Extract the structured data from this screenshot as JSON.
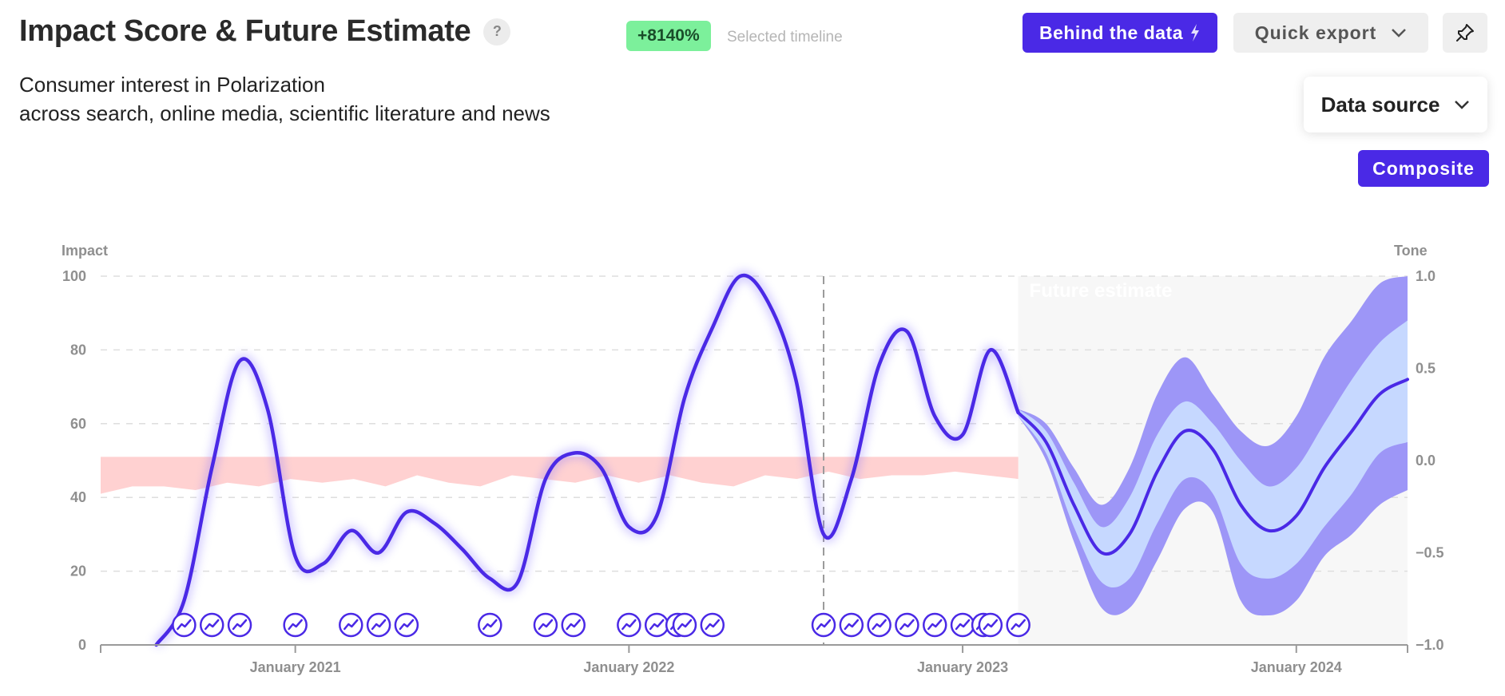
{
  "header": {
    "title": "Impact Score & Future Estimate",
    "help_label": "?",
    "growth_badge": "+8140%",
    "growth_caption": "Selected timeline",
    "subtitle_line1": "Consumer interest in Polarization",
    "subtitle_line2": "across search, online media, scientific literature and news"
  },
  "toolbar": {
    "behind_label": "Behind the data",
    "export_label": "Quick export",
    "data_source_label": "Data source",
    "composite_label": "Composite"
  },
  "colors": {
    "accent": "#4a29e6",
    "badge": "#7cf09b",
    "tone_band": "#ffcfcf",
    "forecast_outer": "#9d96f7",
    "forecast_inner": "#c6d8ff",
    "future_bg": "#f7f7f7"
  },
  "icons": {
    "behind": "lightning-icon",
    "export": "chevron-down-icon",
    "pin": "pin-icon",
    "data_source": "chevron-down-icon",
    "event": "trend-icon"
  },
  "chart_data": {
    "type": "line",
    "title": "Impact Score & Future Estimate",
    "ylabel": "Impact",
    "y2label": "Tone",
    "ylim": [
      0,
      100
    ],
    "y2lim": [
      -1.0,
      1.0
    ],
    "y_ticks": [
      "0",
      "20",
      "40",
      "60",
      "80",
      "100"
    ],
    "y2_ticks": [
      "1.0",
      "0.5",
      "0.0",
      "−0.5",
      "−1.0"
    ],
    "x_ticks": [
      "January 2021",
      "January 2022",
      "January 2023",
      "January 2024"
    ],
    "x_range": [
      "2020-06",
      "2024-05"
    ],
    "grid": "horizontal-dashed",
    "marker_date": "2022-08",
    "future_label": "Future estimate",
    "future_start": "2023-03",
    "series": [
      {
        "name": "Impact",
        "x": [
          "2020-08",
          "2020-09",
          "2020-10",
          "2020-11",
          "2020-12",
          "2021-01",
          "2021-02",
          "2021-03",
          "2021-04",
          "2021-05",
          "2021-06",
          "2021-07",
          "2021-08",
          "2021-09",
          "2021-10",
          "2021-11",
          "2021-12",
          "2022-01",
          "2022-02",
          "2022-03",
          "2022-04",
          "2022-05",
          "2022-06",
          "2022-07",
          "2022-08",
          "2022-09",
          "2022-10",
          "2022-11",
          "2022-12",
          "2023-01",
          "2023-02",
          "2023-03"
        ],
        "values": [
          0,
          12,
          48,
          77,
          64,
          24,
          22,
          31,
          25,
          36,
          33,
          26,
          18,
          17,
          45,
          52,
          48,
          32,
          35,
          67,
          86,
          100,
          93,
          72,
          30,
          45,
          76,
          85,
          62,
          57,
          80,
          63
        ]
      }
    ],
    "forecast": {
      "x": [
        "2023-03",
        "2023-04",
        "2023-05",
        "2023-06",
        "2023-07",
        "2023-08",
        "2023-09",
        "2023-10",
        "2023-11",
        "2023-12",
        "2024-01",
        "2024-02",
        "2024-03",
        "2024-04",
        "2024-05"
      ],
      "mid": [
        63,
        55,
        38,
        25,
        30,
        47,
        58,
        53,
        38,
        31,
        35,
        48,
        58,
        68,
        72
      ],
      "inner_lower": [
        62,
        52,
        32,
        17,
        18,
        33,
        45,
        41,
        22,
        18,
        22,
        32,
        41,
        52,
        55
      ],
      "inner_upper": [
        64,
        58,
        44,
        32,
        40,
        57,
        66,
        60,
        50,
        43,
        48,
        60,
        72,
        82,
        88
      ],
      "outer_lower": [
        62,
        50,
        28,
        10,
        10,
        23,
        37,
        36,
        12,
        8,
        12,
        24,
        30,
        38,
        42
      ],
      "outer_upper": [
        64,
        60,
        48,
        38,
        48,
        68,
        78,
        68,
        58,
        54,
        62,
        78,
        88,
        98,
        100
      ]
    },
    "tone_band": {
      "upper": 51,
      "lower": [
        41,
        43,
        43,
        42,
        44,
        43,
        45,
        44,
        45,
        43,
        46,
        44,
        43,
        46,
        45,
        44,
        46,
        44,
        46,
        44,
        43,
        46,
        45,
        47,
        45,
        46,
        46,
        47,
        46,
        45
      ]
    },
    "events": [
      "2020-09",
      "2020-10",
      "2020-11",
      "2021-01",
      "2021-03",
      "2021-04",
      "2021-05",
      "2021-08",
      "2021-10",
      "2021-11",
      "2022-01",
      "2022-02",
      "2022-02",
      "2022-03",
      "2022-04",
      "2022-08",
      "2022-09",
      "2022-10",
      "2022-11",
      "2022-12",
      "2023-01",
      "2023-01",
      "2023-02",
      "2023-03"
    ]
  }
}
